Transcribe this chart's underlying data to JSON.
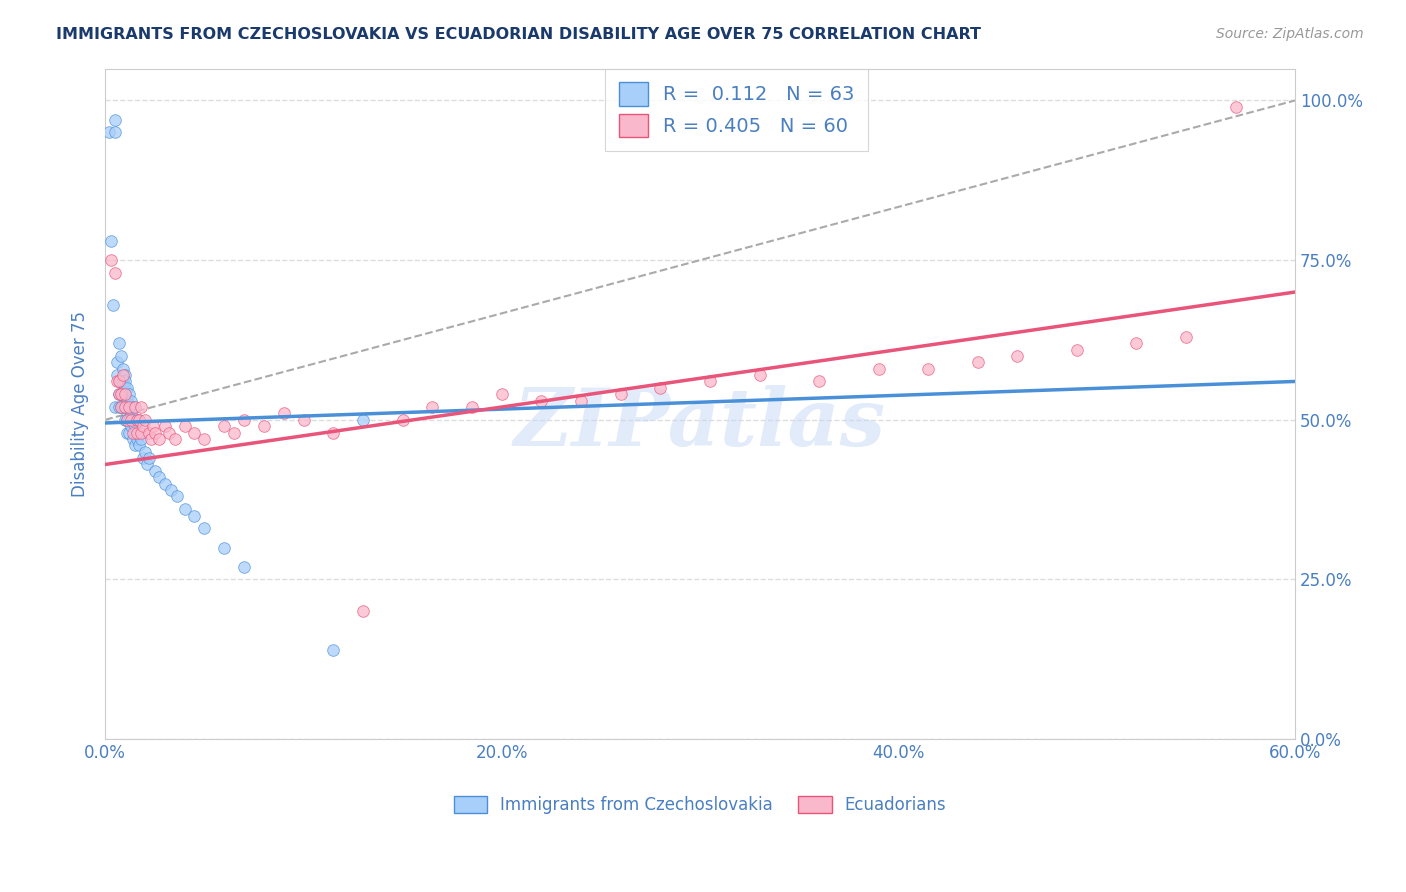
{
  "title": "IMMIGRANTS FROM CZECHOSLOVAKIA VS ECUADORIAN DISABILITY AGE OVER 75 CORRELATION CHART",
  "source_text": "Source: ZipAtlas.com",
  "ylabel": "Disability Age Over 75",
  "legend_label_1": "Immigrants from Czechoslovakia",
  "legend_label_2": "Ecuadorians",
  "R1": 0.112,
  "N1": 63,
  "R2": 0.405,
  "N2": 60,
  "color1": "#A8CEFA",
  "color2": "#FAB8CC",
  "trendline1_color": "#4A90D9",
  "trendline2_color": "#E8547A",
  "watermark": "ZIPatlas",
  "xmin": 0.0,
  "xmax": 0.6,
  "ymin": 0.0,
  "ymax": 1.05,
  "ytick_labels": [
    "0.0%",
    "25.0%",
    "50.0%",
    "75.0%",
    "100.0%"
  ],
  "ytick_values": [
    0.0,
    0.25,
    0.5,
    0.75,
    1.0
  ],
  "xtick_labels": [
    "0.0%",
    "20.0%",
    "40.0%",
    "60.0%"
  ],
  "xtick_values": [
    0.0,
    0.2,
    0.4,
    0.6
  ],
  "scatter1_x": [
    0.002,
    0.003,
    0.004,
    0.005,
    0.005,
    0.005,
    0.006,
    0.006,
    0.007,
    0.007,
    0.007,
    0.007,
    0.008,
    0.008,
    0.008,
    0.008,
    0.009,
    0.009,
    0.009,
    0.009,
    0.01,
    0.01,
    0.01,
    0.01,
    0.01,
    0.01,
    0.011,
    0.011,
    0.011,
    0.011,
    0.011,
    0.012,
    0.012,
    0.012,
    0.012,
    0.013,
    0.013,
    0.013,
    0.014,
    0.014,
    0.014,
    0.015,
    0.015,
    0.016,
    0.017,
    0.017,
    0.018,
    0.019,
    0.02,
    0.021,
    0.022,
    0.025,
    0.027,
    0.03,
    0.033,
    0.036,
    0.04,
    0.045,
    0.05,
    0.06,
    0.07,
    0.115,
    0.13
  ],
  "scatter1_y": [
    0.95,
    0.78,
    0.68,
    0.95,
    0.97,
    0.52,
    0.57,
    0.59,
    0.62,
    0.52,
    0.54,
    0.56,
    0.6,
    0.56,
    0.54,
    0.52,
    0.58,
    0.56,
    0.54,
    0.52,
    0.57,
    0.55,
    0.54,
    0.52,
    0.5,
    0.56,
    0.55,
    0.53,
    0.52,
    0.5,
    0.48,
    0.54,
    0.52,
    0.5,
    0.48,
    0.53,
    0.51,
    0.49,
    0.52,
    0.5,
    0.47,
    0.49,
    0.46,
    0.47,
    0.5,
    0.46,
    0.47,
    0.44,
    0.45,
    0.43,
    0.44,
    0.42,
    0.41,
    0.4,
    0.39,
    0.38,
    0.36,
    0.35,
    0.33,
    0.3,
    0.27,
    0.14,
    0.5
  ],
  "scatter2_x": [
    0.003,
    0.005,
    0.006,
    0.007,
    0.007,
    0.008,
    0.008,
    0.009,
    0.01,
    0.01,
    0.011,
    0.012,
    0.013,
    0.014,
    0.015,
    0.016,
    0.016,
    0.017,
    0.018,
    0.018,
    0.019,
    0.02,
    0.022,
    0.023,
    0.024,
    0.025,
    0.027,
    0.03,
    0.032,
    0.035,
    0.04,
    0.045,
    0.05,
    0.06,
    0.065,
    0.07,
    0.08,
    0.09,
    0.1,
    0.115,
    0.13,
    0.15,
    0.165,
    0.185,
    0.2,
    0.22,
    0.24,
    0.26,
    0.28,
    0.305,
    0.33,
    0.36,
    0.39,
    0.415,
    0.44,
    0.46,
    0.49,
    0.52,
    0.545,
    0.57
  ],
  "scatter2_y": [
    0.75,
    0.73,
    0.56,
    0.54,
    0.56,
    0.54,
    0.52,
    0.57,
    0.54,
    0.52,
    0.5,
    0.52,
    0.5,
    0.48,
    0.52,
    0.5,
    0.48,
    0.5,
    0.48,
    0.52,
    0.49,
    0.5,
    0.48,
    0.47,
    0.49,
    0.48,
    0.47,
    0.49,
    0.48,
    0.47,
    0.49,
    0.48,
    0.47,
    0.49,
    0.48,
    0.5,
    0.49,
    0.51,
    0.5,
    0.48,
    0.2,
    0.5,
    0.52,
    0.52,
    0.54,
    0.53,
    0.53,
    0.54,
    0.55,
    0.56,
    0.57,
    0.56,
    0.58,
    0.58,
    0.59,
    0.6,
    0.61,
    0.62,
    0.63,
    0.99
  ],
  "trendline1_x": [
    0.0,
    0.6
  ],
  "trendline1_y": [
    0.495,
    0.56
  ],
  "trendline2_x": [
    0.0,
    0.6
  ],
  "trendline2_y": [
    0.43,
    0.7
  ],
  "dashed_line_x": [
    0.0,
    0.6
  ],
  "dashed_line_y": [
    0.5,
    1.0
  ],
  "background_color": "#ffffff",
  "grid_color": "#dddddd",
  "title_color": "#1a3a6b",
  "axis_label_color": "#4a7fc1",
  "tick_label_color": "#4a7fc1"
}
